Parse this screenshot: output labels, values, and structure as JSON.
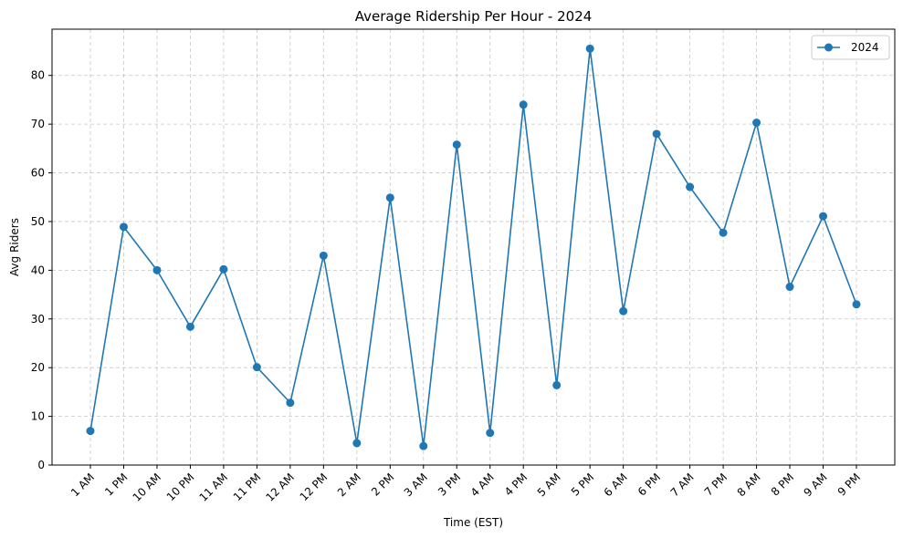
{
  "chart_data": {
    "type": "line",
    "title": "Average Ridership Per Hour - 2024",
    "xlabel": "Time (EST)",
    "ylabel": "Avg Riders",
    "categories": [
      "1 AM",
      "1 PM",
      "10 AM",
      "10 PM",
      "11 AM",
      "11 PM",
      "12 AM",
      "12 PM",
      "2 AM",
      "2 PM",
      "3 AM",
      "3 PM",
      "4 AM",
      "4 PM",
      "5 AM",
      "5 PM",
      "6 AM",
      "6 PM",
      "7 AM",
      "7 PM",
      "8 AM",
      "8 PM",
      "9 AM",
      "9 PM"
    ],
    "series": [
      {
        "name": "2024",
        "color": "#1f77b4",
        "marker": "circle",
        "values": [
          7.0,
          48.9,
          40.0,
          28.4,
          40.2,
          20.1,
          12.8,
          43.0,
          4.5,
          54.9,
          3.9,
          65.8,
          6.6,
          74.0,
          16.4,
          85.5,
          31.6,
          68.0,
          57.1,
          47.7,
          70.3,
          36.6,
          51.1,
          33.0
        ]
      }
    ],
    "ylim": [
      0,
      89.5
    ],
    "yticks": [
      0,
      10,
      20,
      30,
      40,
      50,
      60,
      70,
      80
    ],
    "grid": true,
    "grid_style": "dashed",
    "legend_position": "top-right",
    "x_tick_rotation": 45
  }
}
